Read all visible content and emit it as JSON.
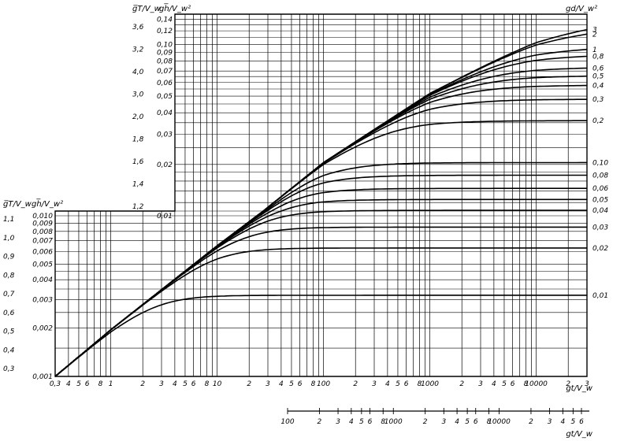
{
  "chart_data": {
    "type": "line",
    "x": {
      "label": "gt/V_w",
      "scale": "log",
      "range": [
        0.3,
        30000
      ],
      "tick_labels": [
        "0,3",
        "4",
        "5",
        "6",
        "8",
        "1",
        "2",
        "3",
        "4",
        "5",
        "6",
        "8",
        "10",
        "2",
        "3",
        "4",
        "5",
        "6",
        "8",
        "100",
        "2",
        "3",
        "4",
        "5",
        "6",
        "8",
        "1000",
        "2",
        "3",
        "4",
        "5",
        "6",
        "8",
        "10000",
        "2",
        "3"
      ],
      "tick_values": [
        0.3,
        0.4,
        0.5,
        0.6,
        0.8,
        1,
        2,
        3,
        4,
        5,
        6,
        8,
        10,
        20,
        30,
        40,
        50,
        60,
        80,
        100,
        200,
        300,
        400,
        500,
        600,
        800,
        1000,
        2000,
        3000,
        4000,
        5000,
        6000,
        8000,
        10000,
        20000,
        30000
      ]
    },
    "x2": {
      "label": "gt/V_w",
      "scale": "log",
      "tick_labels": [
        "100",
        "2",
        "3",
        "4",
        "5",
        "6",
        "8",
        "1000",
        "2",
        "3",
        "4",
        "5",
        "6",
        "8",
        "10000",
        "2",
        "3",
        "4",
        "5",
        "6"
      ],
      "tick_values": [
        100,
        200,
        300,
        400,
        500,
        600,
        800,
        1000,
        2000,
        3000,
        4000,
        5000,
        6000,
        8000,
        10000,
        20000,
        30000,
        40000,
        50000,
        60000
      ]
    },
    "y_lower": {
      "labels": [
        "g̅T/V_w",
        "gh̅/V_w²"
      ],
      "scale": "log",
      "range_h": [
        0.001,
        0.0107
      ],
      "T_ticks": [
        "1,1",
        "1,0",
        "0,9",
        "0,8",
        "0,7",
        "0,6",
        "0,5",
        "0,4",
        "0,3"
      ],
      "T_values": [
        1.1,
        1.0,
        0.9,
        0.8,
        0.7,
        0.6,
        0.5,
        0.4,
        0.3
      ],
      "h_ticks": [
        "0,010",
        "0,009",
        "0,008",
        "0,007",
        "0,006",
        "0,005",
        "0,004",
        "0,003",
        "0,002",
        "0,001"
      ],
      "h_values": [
        0.01,
        0.009,
        0.008,
        0.007,
        0.006,
        0.005,
        0.004,
        0.003,
        0.002,
        0.001
      ]
    },
    "y_upper": {
      "labels": [
        "g̅T/V_w",
        "gh̅/V_w²"
      ],
      "scale": "log",
      "range_h": [
        0.0107,
        0.15
      ],
      "T_ticks": [
        "3,6",
        "3,2",
        "4,0",
        "3,0",
        "2,0",
        "1,8",
        "1,6",
        "1,4",
        "1,2"
      ],
      "T_values": [
        3.6,
        3.2,
        4.0,
        3.0,
        2.0,
        1.8,
        1.6,
        1.4,
        1.2
      ],
      "h_ticks": [
        "0,14",
        "0,12",
        "0,10",
        "0,09",
        "0,08",
        "0,07",
        "0,06",
        "0,05",
        "0,04",
        "0,03",
        "0,02",
        "0,01"
      ],
      "h_values": [
        0.14,
        0.12,
        0.1,
        0.09,
        0.08,
        0.07,
        0.06,
        0.05,
        0.04,
        0.03,
        0.02,
        0.01
      ]
    },
    "right_axis_label": "gd/V_w²",
    "series": [
      {
        "name": "3",
        "sat": 0.145
      },
      {
        "name": "2",
        "sat": 0.13
      },
      {
        "name": "1",
        "sat": 0.098
      },
      {
        "name": "0,8",
        "sat": 0.088
      },
      {
        "name": "0,6",
        "sat": 0.074
      },
      {
        "name": "0,5",
        "sat": 0.066
      },
      {
        "name": "0,4",
        "sat": 0.058
      },
      {
        "name": "0,3",
        "sat": 0.048
      },
      {
        "name": "0,2",
        "sat": 0.036
      },
      {
        "name": "0,10",
        "sat": 0.0205
      },
      {
        "name": "0,08",
        "sat": 0.0173
      },
      {
        "name": "0,06",
        "sat": 0.0145
      },
      {
        "name": "0,05",
        "sat": 0.0125
      },
      {
        "name": "0,04",
        "sat": 0.0108
      },
      {
        "name": "0,03",
        "sat": 0.0085
      },
      {
        "name": "0,02",
        "sat": 0.0063
      },
      {
        "name": "0,01",
        "sat": 0.0032
      }
    ],
    "envelope_h_at_x": [
      [
        0.3,
        0.001
      ],
      [
        1,
        0.00195
      ],
      [
        10,
        0.0065
      ],
      [
        100,
        0.0205
      ],
      [
        1000,
        0.052
      ],
      [
        10000,
        0.11
      ],
      [
        30000,
        0.145
      ]
    ],
    "grid": true,
    "legend": "curve labels at right edge"
  }
}
